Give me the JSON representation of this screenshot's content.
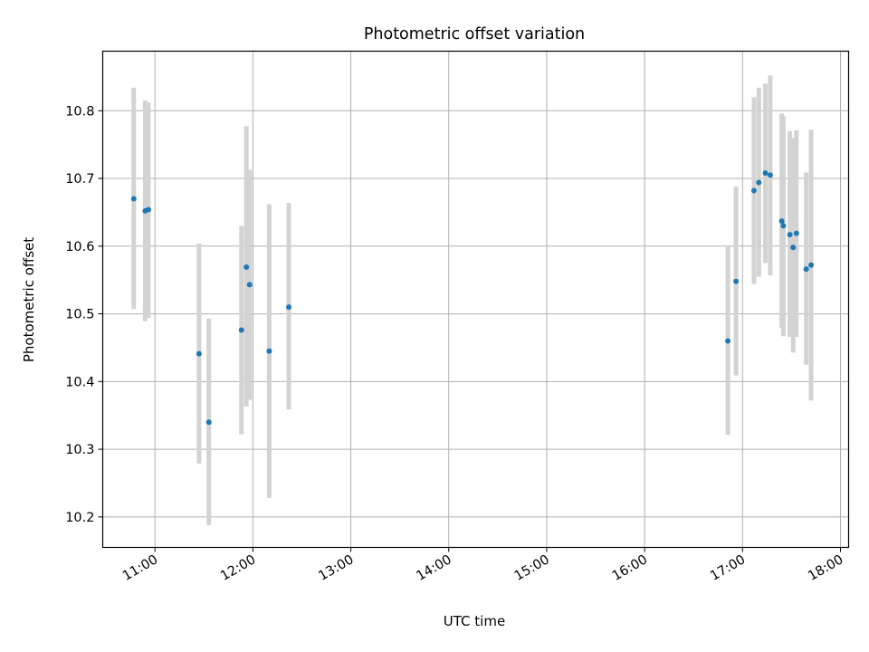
{
  "chart_data": {
    "type": "scatter",
    "title": "Photometric offset variation",
    "xlabel": "UTC time",
    "ylabel": "Photometric offset",
    "x_ticks": [
      "11:00",
      "12:00",
      "13:00",
      "14:00",
      "15:00",
      "16:00",
      "17:00",
      "18:00"
    ],
    "y_ticks": [
      "10.2",
      "10.3",
      "10.4",
      "10.5",
      "10.6",
      "10.7",
      "10.8"
    ],
    "xlim": [
      "10:28",
      "18:05"
    ],
    "ylim": [
      10.155,
      10.888
    ],
    "grid": true,
    "colors": {
      "point": "#1f77b4",
      "errorbar": "#d3d3d3",
      "grid": "#b0b0b0"
    },
    "points": [
      {
        "x": "10:47",
        "y": 10.67,
        "yerr_low": 10.507,
        "yerr_high": 10.834
      },
      {
        "x": "10:54",
        "y": 10.652,
        "yerr_low": 10.489,
        "yerr_high": 10.815
      },
      {
        "x": "10:56",
        "y": 10.654,
        "yerr_low": 10.494,
        "yerr_high": 10.812
      },
      {
        "x": "11:27",
        "y": 10.441,
        "yerr_low": 10.279,
        "yerr_high": 10.604
      },
      {
        "x": "11:33",
        "y": 10.34,
        "yerr_low": 10.188,
        "yerr_high": 10.493
      },
      {
        "x": "11:53",
        "y": 10.476,
        "yerr_low": 10.322,
        "yerr_high": 10.63
      },
      {
        "x": "11:56",
        "y": 10.569,
        "yerr_low": 10.363,
        "yerr_high": 10.777
      },
      {
        "x": "11:58",
        "y": 10.543,
        "yerr_low": 10.373,
        "yerr_high": 10.713
      },
      {
        "x": "12:10",
        "y": 10.445,
        "yerr_low": 10.228,
        "yerr_high": 10.662
      },
      {
        "x": "12:22",
        "y": 10.51,
        "yerr_low": 10.359,
        "yerr_high": 10.664
      },
      {
        "x": "16:51",
        "y": 10.46,
        "yerr_low": 10.321,
        "yerr_high": 10.6
      },
      {
        "x": "16:56",
        "y": 10.548,
        "yerr_low": 10.409,
        "yerr_high": 10.688
      },
      {
        "x": "17:07",
        "y": 10.682,
        "yerr_low": 10.544,
        "yerr_high": 10.82
      },
      {
        "x": "17:10",
        "y": 10.694,
        "yerr_low": 10.555,
        "yerr_high": 10.834
      },
      {
        "x": "17:14",
        "y": 10.708,
        "yerr_low": 10.575,
        "yerr_high": 10.84
      },
      {
        "x": "17:17",
        "y": 10.705,
        "yerr_low": 10.557,
        "yerr_high": 10.852
      },
      {
        "x": "17:24",
        "y": 10.637,
        "yerr_low": 10.479,
        "yerr_high": 10.796
      },
      {
        "x": "17:25",
        "y": 10.63,
        "yerr_low": 10.467,
        "yerr_high": 10.792
      },
      {
        "x": "17:29",
        "y": 10.617,
        "yerr_low": 10.466,
        "yerr_high": 10.77
      },
      {
        "x": "17:31",
        "y": 10.598,
        "yerr_low": 10.443,
        "yerr_high": 10.76
      },
      {
        "x": "17:33",
        "y": 10.619,
        "yerr_low": 10.466,
        "yerr_high": 10.771
      },
      {
        "x": "17:39",
        "y": 10.566,
        "yerr_low": 10.425,
        "yerr_high": 10.709
      },
      {
        "x": "17:42",
        "y": 10.572,
        "yerr_low": 10.372,
        "yerr_high": 10.772
      }
    ]
  }
}
